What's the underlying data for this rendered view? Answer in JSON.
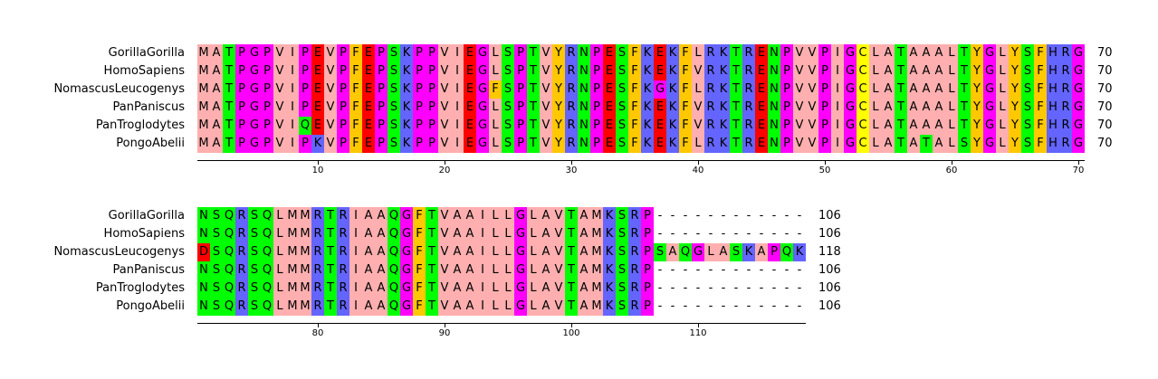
{
  "alignment": {
    "colors": {
      "A": "#ffafaf",
      "G": "#ff00ff",
      "P": "#ff00ff",
      "S": "#00ff00",
      "T": "#00ff00",
      "N": "#00ff00",
      "Q": "#00ff00",
      "D": "#ff0000",
      "E": "#ff0000",
      "K": "#6464ff",
      "R": "#6464ff",
      "H": "#6464ff",
      "F": "#ffc800",
      "W": "#ffc800",
      "Y": "#ffc800",
      "C": "#ffff00",
      "I": "#ffafaf",
      "L": "#ffafaf",
      "M": "#ffafaf",
      "V": "#ffafaf"
    },
    "blocks": [
      {
        "start": 1,
        "ticks": [
          10,
          20,
          30,
          40,
          50,
          60,
          70
        ],
        "rows": [
          {
            "name": "GorillaGorilla",
            "seq": "MATPGPVIPEVPFEPSKPPVIEGLSPTVYRNPESFKEKFLRKTRENPVVPIGCLATAAALTYGLYSFHRG",
            "end": "70"
          },
          {
            "name": "HomoSapiens",
            "seq": "MATPGPVIPEVPFEPSKPPVIEGLSPTVYRNPESFKEKFVRKTRENPVVPIGCLATAAALTYGLYSFHRG",
            "end": "70"
          },
          {
            "name": "NomascusLeucogenys",
            "seq": "MATPGPVIPEVPFEPSKPPVIEGFSPTVYRNPESFKGKFLRKTRENPVVPIGCLATAAALTYGLYSFHRG",
            "end": "70"
          },
          {
            "name": "PanPaniscus",
            "seq": "MATPGPVIPEVPFEPSKPPVIEGLSPTVYRNPESFKEKFVRKTRENPVVPIGCLATAAALTYGLYSFHRG",
            "end": "70"
          },
          {
            "name": "PanTroglodytes",
            "seq": "MATPGPVIQEVPFEPSKPPVIEGLSPTVYRNPESFKEKFVRKTRENPVVPIGCLATAAALTYGLYSFHRG",
            "end": "70"
          },
          {
            "name": "PongoAbelii",
            "seq": "MATPGPVIPKVPFEPSKPPVIEGLSPTVYRNPESFKEKFLRKTRENPVVPIGCLATATALSYGLYSFHRG",
            "end": "70"
          }
        ]
      },
      {
        "start": 71,
        "ticks": [
          80,
          90,
          100,
          110
        ],
        "rows": [
          {
            "name": "GorillaGorilla",
            "seq": "NSQRSQLMMRTRIAAQGFTVAAILLGLAVTAMKSRP------------",
            "end": "106"
          },
          {
            "name": "HomoSapiens",
            "seq": "NSQRSQLMMRTRIAAQGFTVAAILLGLAVTAMKSRP------------",
            "end": "106"
          },
          {
            "name": "NomascusLeucogenys",
            "seq": "DSQRSQLMMRTRIAAQGFTVAAILLGLAVTAMKSRPSAQGLASKAPQK",
            "end": "118"
          },
          {
            "name": "PanPaniscus",
            "seq": "NSQRSQLMMRTRIAAQGFTVAAILLGLAVTAMKSRP------------",
            "end": "106"
          },
          {
            "name": "PanTroglodytes",
            "seq": "NSQRSQLMMRTRIAAQGFTVAAILLGLAVTAMKSRP------------",
            "end": "106"
          },
          {
            "name": "PongoAbelii",
            "seq": "NSQRSQLMMRTRIAAQGFTVAAILLGLAVTAMKSRP------------",
            "end": "106"
          }
        ]
      }
    ]
  }
}
